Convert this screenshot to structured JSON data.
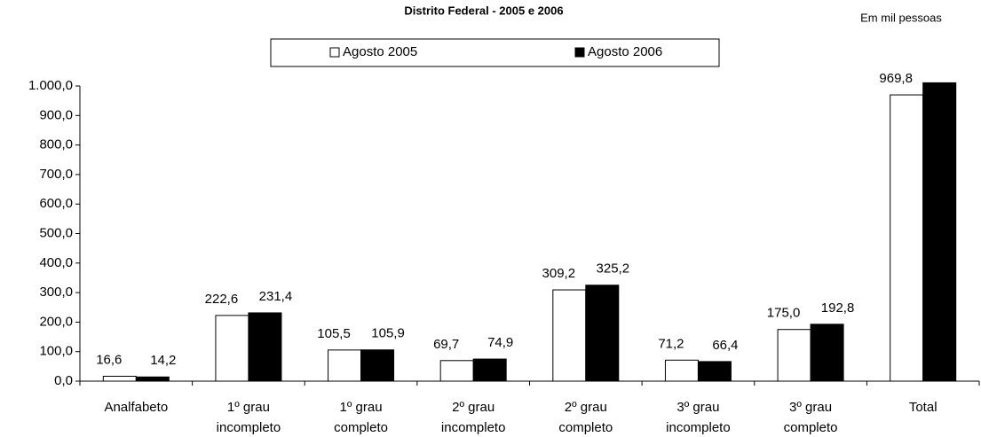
{
  "chart_data": {
    "type": "bar",
    "title": "Distrito Federal - 2005 e 2006",
    "subtitle": "Em mil pessoas",
    "categories": [
      [
        "Analfabeto"
      ],
      [
        "1º grau",
        "incompleto"
      ],
      [
        "1º grau",
        "completo"
      ],
      [
        "2º grau",
        "incompleto"
      ],
      [
        "2º grau",
        "completo"
      ],
      [
        "3º grau",
        "incompleto"
      ],
      [
        "3º grau",
        "completo"
      ],
      [
        "Total"
      ]
    ],
    "series": [
      {
        "name": "Agosto 2005",
        "color": "#ffffff",
        "values": [
          16.6,
          222.6,
          105.5,
          69.7,
          309.2,
          71.2,
          175.0,
          969.8
        ],
        "value_labels": [
          "16,6",
          "222,6",
          "105,5",
          "69,7",
          "309,2",
          "71,2",
          "175,0",
          "969,8"
        ]
      },
      {
        "name": "Agosto 2006",
        "color": "#000000",
        "values": [
          14.2,
          231.4,
          105.9,
          74.9,
          325.2,
          66.4,
          192.8,
          1010.8
        ],
        "value_labels": [
          "14,2",
          "231,4",
          "105,9",
          "74,9",
          "325,2",
          "66,4",
          "192,8",
          null
        ]
      }
    ],
    "ylim": [
      0,
      1000
    ],
    "yticks": [
      {
        "value": 0,
        "label": "0,0"
      },
      {
        "value": 100,
        "label": "100,0"
      },
      {
        "value": 200,
        "label": "200,0"
      },
      {
        "value": 300,
        "label": "300,0"
      },
      {
        "value": 400,
        "label": "400,0"
      },
      {
        "value": 500,
        "label": "500,0"
      },
      {
        "value": 600,
        "label": "600,0"
      },
      {
        "value": 700,
        "label": "700,0"
      },
      {
        "value": 800,
        "label": "800,0"
      },
      {
        "value": 900,
        "label": "900,0"
      },
      {
        "value": 1000,
        "label": "1.000,0"
      }
    ],
    "grid": false
  }
}
